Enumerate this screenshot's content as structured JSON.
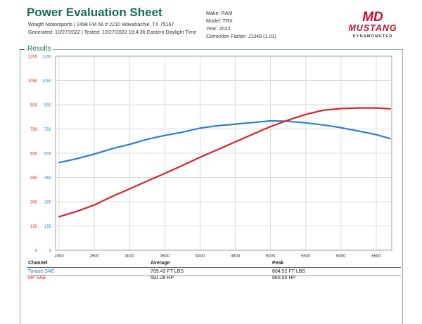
{
  "header": {
    "title": "Power Evaluation Sheet",
    "shop_line": "Wragth Motorsports | 2498 FM 66 # 2210 Waxahachie, TX 75167",
    "dates_line": "Generated: 10/27/2022 | Tested: 10/27/2022 19:4:36 Eastern Daylight Time",
    "make": "Make: RAM",
    "model": "Model: TRX",
    "year": "Year: 2022",
    "correction": "Correction Factor: J1349 (1.01)"
  },
  "logo": {
    "top": "MUSTANG",
    "bottom": "DYNAMOMETER",
    "mark": "MD"
  },
  "results_label": "Results",
  "colors": {
    "torque": "#2a7fd4",
    "hp": "#e0202a",
    "accent": "#1b6b5a"
  },
  "chart_data": {
    "type": "line",
    "x": [
      2000,
      2250,
      2500,
      2750,
      3000,
      3250,
      3500,
      3750,
      4000,
      4250,
      4500,
      4750,
      5000,
      5250,
      5500,
      5750,
      6000,
      6250,
      6500,
      6700
    ],
    "series": [
      {
        "name": "Torque SAE",
        "axis": "blue",
        "values": [
          542,
          566,
          595,
          628,
          655,
          686,
          710,
          730,
          755,
          770,
          780,
          790,
          800,
          798,
          788,
          775,
          758,
          737,
          715,
          690
        ]
      },
      {
        "name": "HP SAE",
        "axis": "red",
        "values": [
          207,
          240,
          280,
          332,
          379,
          428,
          475,
          524,
          575,
          622,
          670,
          718,
          765,
          805,
          840,
          866,
          876,
          880,
          880,
          875
        ]
      }
    ],
    "xlim": [
      1950,
      6720
    ],
    "xticks": [
      "2000",
      "2500",
      "3000",
      "3500",
      "4000",
      "4500",
      "5000",
      "5500",
      "6000",
      "6500"
    ],
    "left_axis_red": {
      "ylim": [
        0,
        1200
      ],
      "ticks": [
        "0",
        "150",
        "300",
        "450",
        "600",
        "750",
        "900",
        "1050",
        "1200"
      ]
    },
    "left_axis_blue": {
      "ylim": [
        0,
        1200
      ],
      "ticks": [
        "0",
        "75",
        "150",
        "225",
        "300",
        "375",
        "450",
        "525",
        "600"
      ]
    },
    "left_axis_blue_labels": [
      "0",
      "150",
      "300",
      "450",
      "600",
      "750",
      "900",
      "1050",
      "1200"
    ],
    "grid": true
  },
  "table": {
    "headers": [
      "Channel",
      "Average",
      "Peak"
    ],
    "rows": [
      {
        "channel": "Torque SAE",
        "average": "709.43 FT-LBS",
        "peak": "804.52 FT-LBS"
      },
      {
        "channel": "HP SAE",
        "average": "591.28 HP",
        "peak": "880.55 HP"
      }
    ]
  }
}
